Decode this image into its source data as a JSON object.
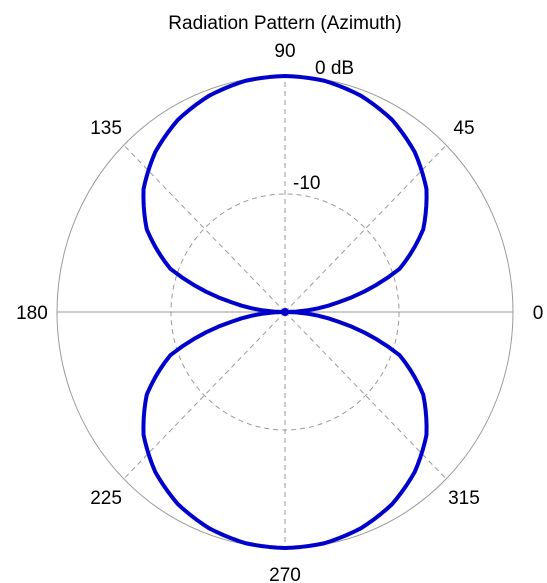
{
  "chart_data": {
    "type": "polar-line",
    "title": "Radiation Pattern (Azimuth)",
    "angle_unit": "degrees",
    "angle_labels": [
      "0",
      "45",
      "90",
      "135",
      "180",
      "225",
      "270",
      "315"
    ],
    "radial_ticks": [
      {
        "value": 0,
        "label": "0 dB"
      },
      {
        "value": -10,
        "label": "-10"
      }
    ],
    "r_range_db": [
      -20,
      0
    ],
    "grid": true,
    "series": [
      {
        "color": "#0000cc",
        "angles_deg": [
          0,
          10,
          20,
          30,
          40,
          50,
          60,
          70,
          80,
          90,
          100,
          110,
          120,
          130,
          140,
          150,
          160,
          170,
          180,
          190,
          200,
          210,
          220,
          230,
          240,
          250,
          260,
          270,
          280,
          290,
          300,
          310,
          320,
          330,
          340,
          350,
          360
        ],
        "gain_db": [
          -20.0,
          -15.2,
          -9.3,
          -6.0,
          -3.8,
          -2.3,
          -1.2,
          -0.5,
          -0.1,
          0.0,
          -0.1,
          -0.5,
          -1.2,
          -2.3,
          -3.8,
          -6.0,
          -9.3,
          -15.2,
          -20.0,
          -15.2,
          -9.3,
          -6.0,
          -3.8,
          -2.3,
          -1.2,
          -0.5,
          -0.1,
          0.0,
          -0.1,
          -0.5,
          -1.2,
          -2.3,
          -3.8,
          -6.0,
          -9.3,
          -15.2,
          -20.0
        ]
      }
    ]
  }
}
